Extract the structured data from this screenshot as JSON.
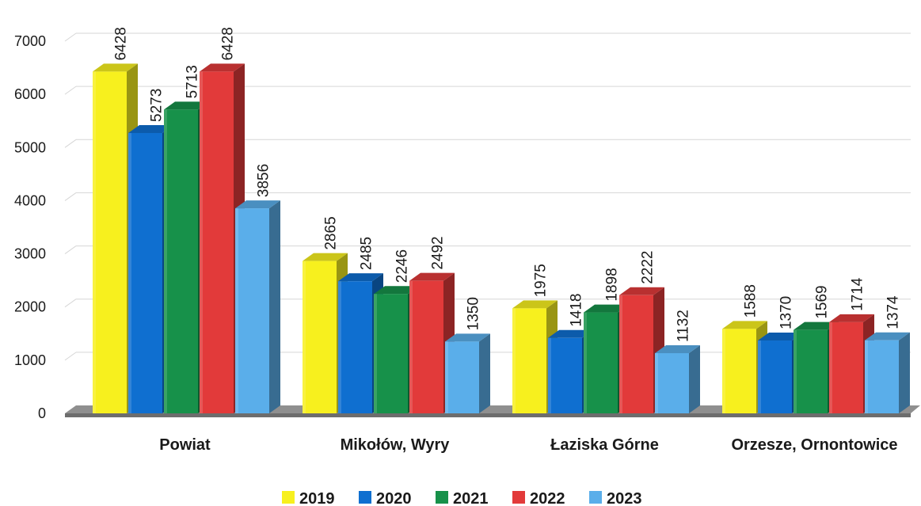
{
  "chart_data": {
    "type": "bar",
    "categories": [
      "Powiat",
      "Mikołów, Wyry",
      "Łaziska Górne",
      "Orzesze, Ornontowice"
    ],
    "series": [
      {
        "name": "2019",
        "color": "#f7f01e",
        "values": [
          6428,
          2865,
          1975,
          1588
        ]
      },
      {
        "name": "2020",
        "color": "#0f6fd0",
        "values": [
          5273,
          2485,
          1418,
          1370
        ]
      },
      {
        "name": "2021",
        "color": "#17914a",
        "values": [
          5713,
          2246,
          1898,
          1569
        ]
      },
      {
        "name": "2022",
        "color": "#e23a3a",
        "values": [
          6428,
          2492,
          2222,
          1714
        ]
      },
      {
        "name": "2023",
        "color": "#5aaeea",
        "values": [
          3856,
          1350,
          1132,
          1374
        ]
      }
    ],
    "yticks": [
      "0",
      "1000",
      "2000",
      "3000",
      "4000",
      "5000",
      "6000",
      "7000"
    ],
    "ylim": [
      0,
      7000
    ],
    "grid": true,
    "legend_position": "bottom",
    "style": "3d-columns"
  }
}
